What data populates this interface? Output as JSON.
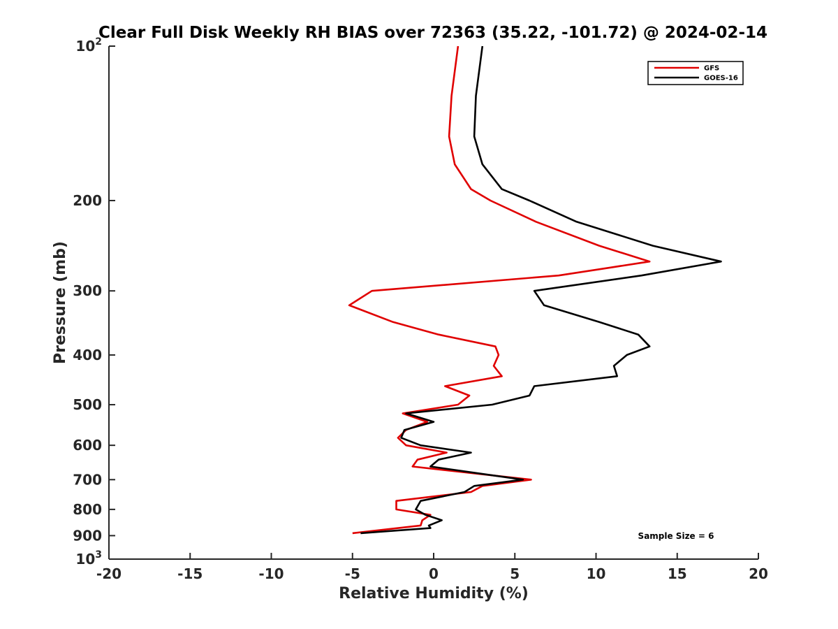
{
  "chart_data": {
    "type": "line",
    "title": "Clear Full Disk Weekly RH BIAS over 72363 (35.22, -101.72) @ 2024-02-14",
    "xlabel": "Relative Humidity (%)",
    "ylabel": "Pressure (mb)",
    "xlim": [
      -20,
      20
    ],
    "ylim": [
      100,
      1000
    ],
    "y_scale": "log",
    "y_reversed": true,
    "grid": false,
    "legend_position": "top-right",
    "x_ticks": [
      {
        "value": -20,
        "label": "-20"
      },
      {
        "value": -15,
        "label": "-15"
      },
      {
        "value": -10,
        "label": "-10"
      },
      {
        "value": -5,
        "label": "-5"
      },
      {
        "value": 0,
        "label": "0"
      },
      {
        "value": 5,
        "label": "5"
      },
      {
        "value": 10,
        "label": "10"
      },
      {
        "value": 15,
        "label": "15"
      },
      {
        "value": 20,
        "label": "20"
      }
    ],
    "y_ticks": [
      {
        "value": 100,
        "label": "10",
        "sup": "2"
      },
      {
        "value": 200,
        "label": "200",
        "sup": ""
      },
      {
        "value": 300,
        "label": "300",
        "sup": ""
      },
      {
        "value": 400,
        "label": "400",
        "sup": ""
      },
      {
        "value": 500,
        "label": "500",
        "sup": ""
      },
      {
        "value": 600,
        "label": "600",
        "sup": ""
      },
      {
        "value": 700,
        "label": "700",
        "sup": ""
      },
      {
        "value": 800,
        "label": "800",
        "sup": ""
      },
      {
        "value": 900,
        "label": "900",
        "sup": ""
      },
      {
        "value": 1000,
        "label": "10",
        "sup": "3"
      }
    ],
    "series": [
      {
        "name": "GFS",
        "color": "#e00000",
        "points": [
          [
            1.5,
            100
          ],
          [
            1.1,
            125
          ],
          [
            0.95,
            150
          ],
          [
            1.3,
            170
          ],
          [
            2.3,
            190
          ],
          [
            3.5,
            200
          ],
          [
            6.3,
            220
          ],
          [
            10.2,
            245
          ],
          [
            13.3,
            263
          ],
          [
            7.7,
            280
          ],
          [
            -3.8,
            300
          ],
          [
            -5.2,
            320
          ],
          [
            -2.5,
            345
          ],
          [
            0.3,
            365
          ],
          [
            3.8,
            385
          ],
          [
            4.0,
            400
          ],
          [
            3.7,
            420
          ],
          [
            4.2,
            440
          ],
          [
            0.7,
            460
          ],
          [
            2.2,
            480
          ],
          [
            1.5,
            500
          ],
          [
            -1.9,
            520
          ],
          [
            -0.4,
            540
          ],
          [
            -1.7,
            560
          ],
          [
            -2.2,
            580
          ],
          [
            -1.7,
            600
          ],
          [
            0.8,
            620
          ],
          [
            -1.0,
            640
          ],
          [
            -1.3,
            660
          ],
          [
            6.0,
            700
          ],
          [
            3.0,
            720
          ],
          [
            2.3,
            740
          ],
          [
            -2.3,
            770
          ],
          [
            -2.3,
            800
          ],
          [
            -0.2,
            820
          ],
          [
            -0.7,
            840
          ],
          [
            -0.8,
            860
          ],
          [
            -5.0,
            890
          ]
        ]
      },
      {
        "name": "GOES-16",
        "color": "#000000",
        "points": [
          [
            3.0,
            100
          ],
          [
            2.6,
            125
          ],
          [
            2.5,
            150
          ],
          [
            3.0,
            170
          ],
          [
            4.2,
            190
          ],
          [
            5.9,
            200
          ],
          [
            8.8,
            220
          ],
          [
            13.5,
            245
          ],
          [
            17.7,
            263
          ],
          [
            12.8,
            280
          ],
          [
            6.2,
            300
          ],
          [
            6.8,
            320
          ],
          [
            10.2,
            345
          ],
          [
            12.6,
            365
          ],
          [
            13.3,
            385
          ],
          [
            11.9,
            400
          ],
          [
            11.1,
            420
          ],
          [
            11.3,
            440
          ],
          [
            6.2,
            460
          ],
          [
            5.9,
            480
          ],
          [
            3.6,
            500
          ],
          [
            -1.7,
            520
          ],
          [
            0.0,
            540
          ],
          [
            -1.8,
            560
          ],
          [
            -2.0,
            580
          ],
          [
            -0.8,
            600
          ],
          [
            2.3,
            620
          ],
          [
            0.3,
            640
          ],
          [
            -0.2,
            660
          ],
          [
            5.5,
            700
          ],
          [
            2.5,
            720
          ],
          [
            1.9,
            740
          ],
          [
            -0.8,
            770
          ],
          [
            -1.1,
            800
          ],
          [
            -0.5,
            820
          ],
          [
            0.5,
            840
          ],
          [
            -0.3,
            860
          ],
          [
            -0.2,
            870
          ],
          [
            -4.5,
            890
          ]
        ]
      }
    ],
    "legend": [
      {
        "name": "GFS",
        "color": "#e00000"
      },
      {
        "name": "GOES-16",
        "color": "#000000"
      }
    ],
    "annotations": [
      {
        "text": "Sample Size = 6",
        "position": "bottom-right"
      }
    ]
  }
}
